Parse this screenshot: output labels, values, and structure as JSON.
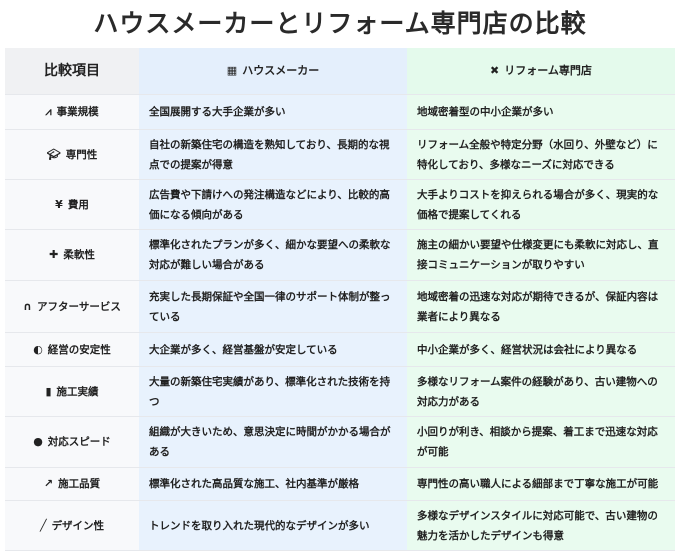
{
  "title": "ハウスメーカーとリフォーム専門店の比較",
  "header": {
    "item": "比較項目",
    "house_maker": "ハウスメーカー",
    "house_maker_icon": "building-icon",
    "reform": "リフォーム専門店",
    "reform_icon": "tools-icon"
  },
  "rows": [
    {
      "label": "事業規模",
      "icon": "chart-line-icon",
      "house": "全国展開する大手企業が多い",
      "reform": "地域密着型の中小企業が多い"
    },
    {
      "label": "専門性",
      "icon": "graduation-cap-icon",
      "house": "自社の新築住宅の構造を熟知しており、長期的な視点での提案が得意",
      "reform": "リフォーム全般や特定分野（水回り、外壁など）に特化しており、多様なニーズに対応できる"
    },
    {
      "label": "費用",
      "icon": "yen-icon",
      "house": "広告費や下請けへの発注構造などにより、比較的高価になる傾向がある",
      "reform": "大手よりコストを抑えられる場合が多く、現実的な価格で提案してくれる"
    },
    {
      "label": "柔軟性",
      "icon": "puzzle-icon",
      "house": "標準化されたプランが多く、細かな要望への柔軟な対応が難しい場合がある",
      "reform": "施主の細かい要望や仕様変更にも柔軟に対応し、直接コミュニケーションが取りやすい"
    },
    {
      "label": "アフターサービス",
      "icon": "headset-icon",
      "house": "充実した長期保証や全国一律のサポート体制が整っている",
      "reform": "地域密着の迅速な対応が期待できるが、保証内容は業者により異なる"
    },
    {
      "label": "経営の安定性",
      "icon": "shield-icon",
      "house": "大企業が多く、経営基盤が安定している",
      "reform": "中小企業が多く、経営状況は会社により異なる"
    },
    {
      "label": "施工実績",
      "icon": "clipboard-icon",
      "house": "大量の新築住宅実績があり、標準化された技術を持つ",
      "reform": "多様なリフォーム案件の経験があり、古い建物への対応力がある"
    },
    {
      "label": "対応スピード",
      "icon": "clock-icon",
      "house": "組織が大きいため、意思決定に時間がかかる場合がある",
      "reform": "小回りが利き、相談から提案、着工まで迅速な対応が可能"
    },
    {
      "label": "施工品質",
      "icon": "hammer-icon",
      "house": "標準化された高品質な施工、社内基準が厳格",
      "reform": "専門性の高い職人による細部まで丁寧な施工が可能"
    },
    {
      "label": "デザイン性",
      "icon": "paintbrush-icon",
      "house": "トレンドを取り入れた現代的なデザインが多い",
      "reform": "多様なデザインスタイルに対応可能で、古い建物の魅力を活かしたデザインも得意"
    }
  ],
  "colors": {
    "house_col": "#e8f2fd",
    "reform_col": "#e9fbef",
    "item_col": "#f8f9fb"
  }
}
